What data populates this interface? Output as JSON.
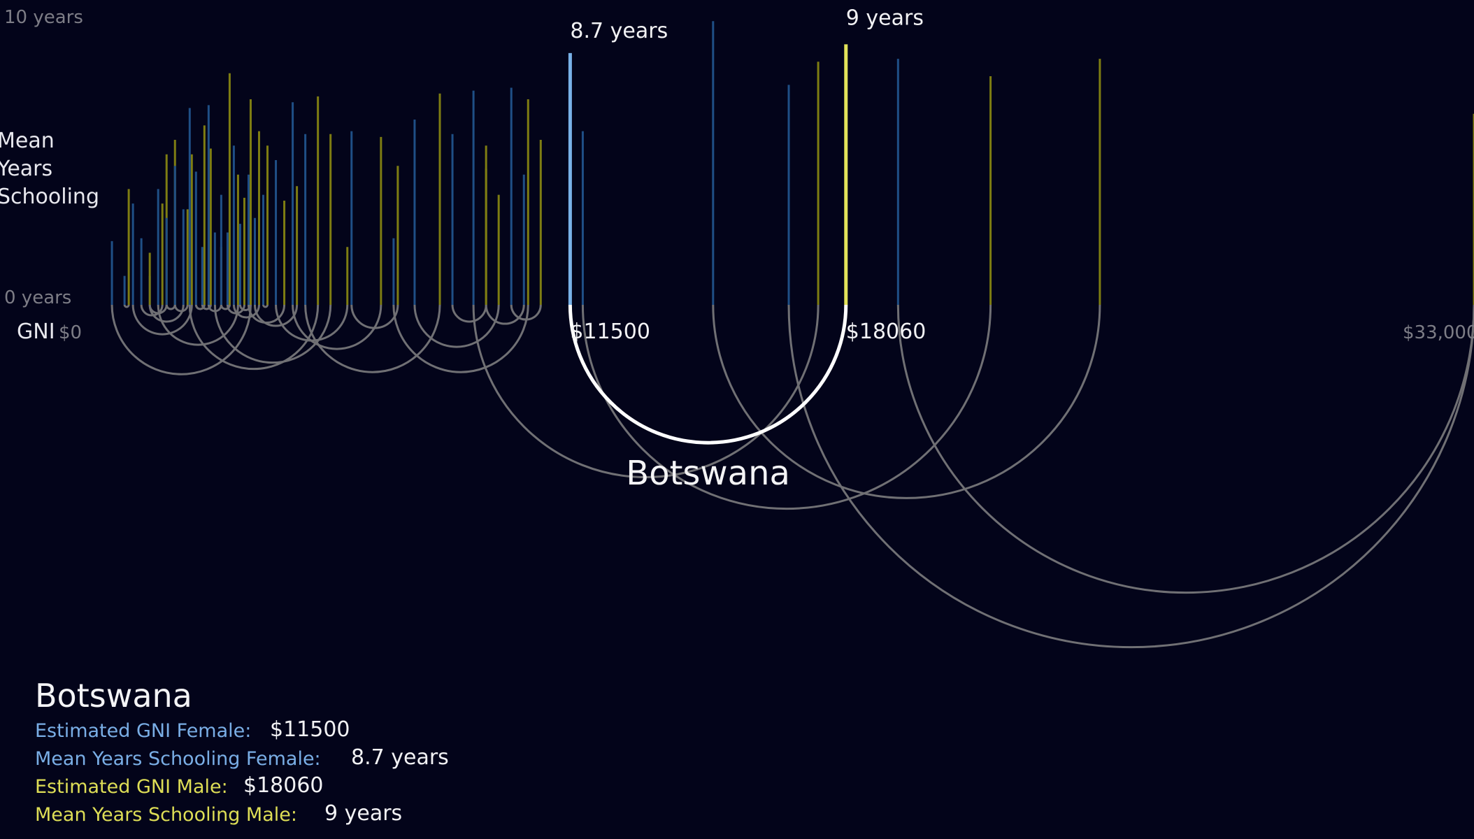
{
  "axis": {
    "y_max_label": "10 years",
    "y_min_label": "0 years",
    "y_title_lines": [
      "Mean",
      "Years",
      "Schooling"
    ],
    "x_title": "GNI",
    "x_min_label": "$0",
    "x_max_label": "$33,000"
  },
  "selected": {
    "country": "Botswana",
    "female_gni": 11500,
    "female_schooling": 8.7,
    "male_gni": 18060,
    "male_schooling": 9,
    "female_gni_label": "$11500",
    "male_gni_label": "$18060",
    "female_schooling_label": "8.7 years",
    "male_schooling_label": "9 years"
  },
  "info": {
    "title": "Botswana",
    "rows": [
      {
        "key": "Estimated GNI Female:",
        "value": "$11500"
      },
      {
        "key": "Mean Years Schooling Female:",
        "value": "8.7 years"
      },
      {
        "key": "Estimated GNI Male:",
        "value": "$18060"
      },
      {
        "key": "Mean Years Schooling Male:",
        "value": "9 years"
      }
    ]
  },
  "colors": {
    "background": "#03041a",
    "female_bar": "#1f4f86",
    "male_bar": "#7e7d12",
    "female_highlight": "#79b2e8",
    "male_highlight": "#e3e35a",
    "arc": "#707074",
    "arc_highlight": "#ffffff",
    "axis_text": "#7d7d86"
  },
  "chart_data": {
    "type": "arc",
    "title": "",
    "xlabel": "GNI",
    "ylabel": "Mean Years Schooling",
    "xlim": [
      0,
      33000
    ],
    "ylim": [
      0,
      10
    ],
    "grid": false,
    "series": [
      {
        "name": "Female",
        "gni": "female_gni",
        "schooling": "female_schooling"
      },
      {
        "name": "Male",
        "gni": "male_gni",
        "schooling": "male_schooling"
      }
    ],
    "countries": [
      {
        "female_gni": 600,
        "female_schooling": 2.2,
        "male_gni": 3900,
        "male_schooling": 6.8
      },
      {
        "female_gni": 900,
        "female_schooling": 1.0,
        "male_gni": 1000,
        "male_schooling": 4.0
      },
      {
        "female_gni": 1100,
        "female_schooling": 3.5,
        "male_gni": 2500,
        "male_schooling": 5.2
      },
      {
        "female_gni": 1300,
        "female_schooling": 2.3,
        "male_gni": 1800,
        "male_schooling": 3.5
      },
      {
        "female_gni": 1500,
        "female_schooling": 1.0,
        "male_gni": 1900,
        "male_schooling": 5.2
      },
      {
        "female_gni": 1700,
        "female_schooling": 4.0,
        "male_gni": 3600,
        "male_schooling": 4.5
      },
      {
        "female_gni": 1900,
        "female_schooling": 3.0,
        "male_gni": 2100,
        "male_schooling": 5.7
      },
      {
        "female_gni": 2100,
        "female_schooling": 4.8,
        "male_gni": 2400,
        "male_schooling": 3.3
      },
      {
        "female_gni": 2300,
        "female_schooling": 3.3,
        "male_gni": 1500,
        "male_schooling": 1.8
      },
      {
        "female_gni": 2450,
        "female_schooling": 6.8,
        "male_gni": 5500,
        "male_schooling": 7.2
      },
      {
        "female_gni": 2600,
        "female_schooling": 4.6,
        "male_gni": 2800,
        "male_schooling": 6.2
      },
      {
        "female_gni": 2750,
        "female_schooling": 2.0,
        "male_gni": 2950,
        "male_schooling": 5.4
      },
      {
        "female_gni": 2900,
        "female_schooling": 6.9,
        "male_gni": 3200,
        "male_schooling": 2.0
      },
      {
        "female_gni": 3050,
        "female_schooling": 2.5,
        "male_gni": 5800,
        "male_schooling": 5.9
      },
      {
        "female_gni": 3200,
        "female_schooling": 3.8,
        "male_gni": 3400,
        "male_schooling": 8.0
      },
      {
        "female_gni": 3350,
        "female_schooling": 2.5,
        "male_gni": 3750,
        "male_schooling": 3.7
      },
      {
        "female_gni": 3500,
        "female_schooling": 5.5,
        "male_gni": 4100,
        "male_schooling": 6.0
      },
      {
        "female_gni": 3650,
        "female_schooling": 2.8,
        "male_gni": 3900,
        "male_schooling": 7.1
      },
      {
        "female_gni": 3850,
        "female_schooling": 4.5,
        "male_gni": 4700,
        "male_schooling": 3.6
      },
      {
        "female_gni": 4000,
        "female_schooling": 3.0,
        "male_gni": 5000,
        "male_schooling": 4.1
      },
      {
        "female_gni": 4200,
        "female_schooling": 3.8,
        "male_gni": 4300,
        "male_schooling": 5.5
      },
      {
        "female_gni": 4500,
        "female_schooling": 5.0,
        "male_gni": 6200,
        "male_schooling": 2.0
      },
      {
        "female_gni": 4900,
        "female_schooling": 7.0,
        "male_gni": 7000,
        "male_schooling": 5.8
      },
      {
        "female_gni": 5200,
        "female_schooling": 5.9,
        "male_gni": 8400,
        "male_schooling": 7.3
      },
      {
        "female_gni": 6300,
        "female_schooling": 6.0,
        "male_gni": 7400,
        "male_schooling": 4.8
      },
      {
        "female_gni": 7300,
        "female_schooling": 2.3,
        "male_gni": 10500,
        "male_schooling": 7.1
      },
      {
        "female_gni": 7800,
        "female_schooling": 6.4,
        "male_gni": 9800,
        "male_schooling": 3.8
      },
      {
        "female_gni": 8700,
        "female_schooling": 5.9,
        "male_gni": 9500,
        "male_schooling": 4.7
      },
      {
        "female_gni": 9200,
        "female_schooling": 7.4,
        "male_gni": 17400,
        "male_schooling": 8.4
      },
      {
        "female_gni": 10100,
        "female_schooling": 7.5,
        "male_gni": 10800,
        "male_schooling": 5.7
      },
      {
        "female_gni": 10400,
        "female_schooling": 4.5,
        "male_gni": 9500,
        "male_schooling": 5.5
      },
      {
        "female_gni": 11800,
        "female_schooling": 6.0,
        "male_gni": 21500,
        "male_schooling": 7.9
      },
      {
        "female_gni": 14900,
        "female_schooling": 9.8,
        "male_gni": 24100,
        "male_schooling": 8.5
      },
      {
        "female_gni": 16700,
        "female_schooling": 7.6,
        "male_gni": 33000,
        "male_schooling": 6.6
      },
      {
        "female_gni": 19300,
        "female_schooling": 8.5,
        "male_gni": 33000,
        "male_schooling": 5.5
      }
    ]
  }
}
